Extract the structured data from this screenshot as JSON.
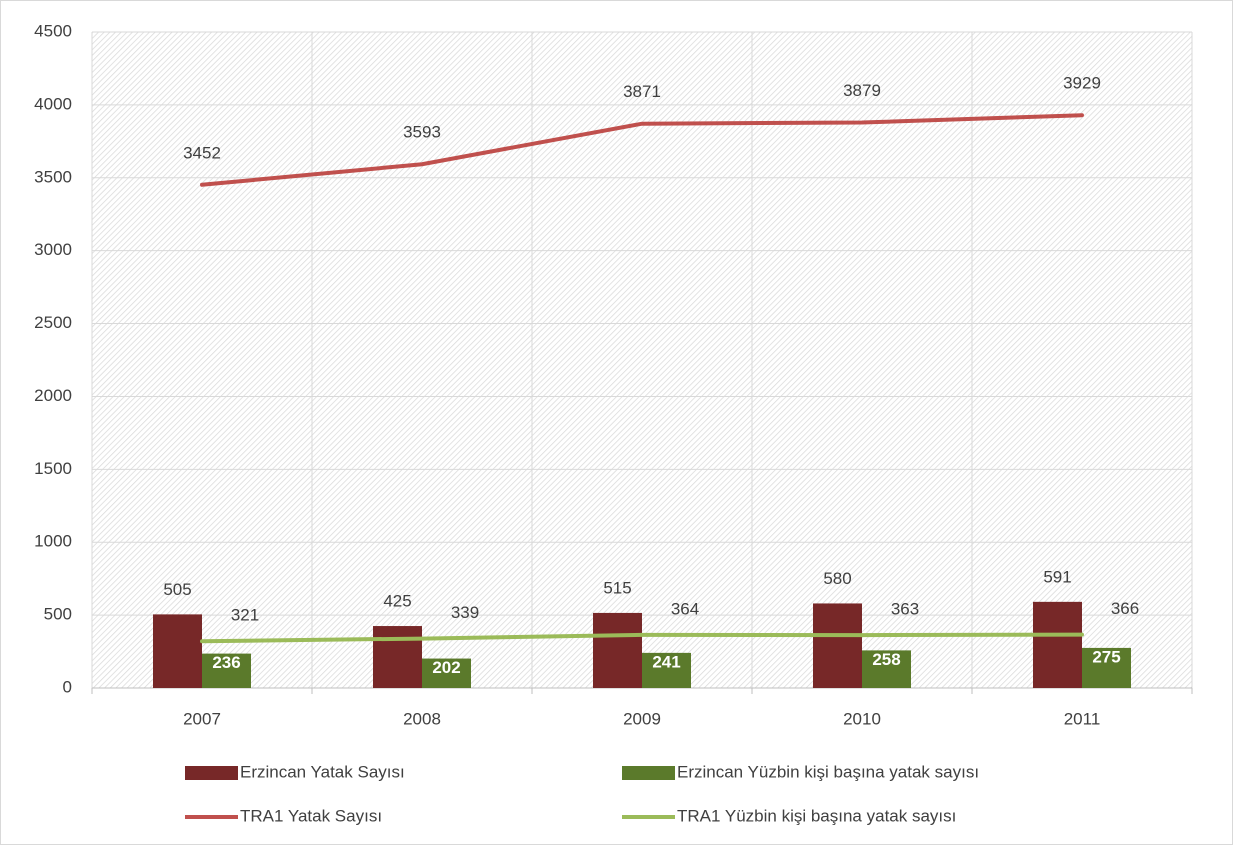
{
  "chart_data": {
    "type": "bar",
    "categories": [
      "2007",
      "2008",
      "2009",
      "2010",
      "2011"
    ],
    "series": [
      {
        "name": "Erzincan Yatak Sayısı",
        "type": "bar",
        "color": "#772828",
        "values": [
          505,
          425,
          515,
          580,
          591
        ]
      },
      {
        "name": "Erzincan Yüzbin kişi başına yatak sayısı",
        "type": "bar",
        "color": "#5b7a2b",
        "values": [
          236,
          202,
          241,
          258,
          275
        ]
      },
      {
        "name": "TRA1 Yatak Sayısı",
        "type": "line",
        "color": "#c0504d",
        "values": [
          3452,
          3593,
          3871,
          3879,
          3929
        ]
      },
      {
        "name": "TRA1 Yüzbin kişi başına yatak sayısı",
        "type": "line",
        "color": "#9bbb59",
        "values": [
          321,
          339,
          364,
          363,
          366
        ]
      }
    ],
    "ylim": [
      0,
      4500
    ],
    "yticks": [
      0,
      500,
      1000,
      1500,
      2000,
      2500,
      3000,
      3500,
      4000,
      4500
    ],
    "grid": true,
    "legend": "bottom"
  }
}
